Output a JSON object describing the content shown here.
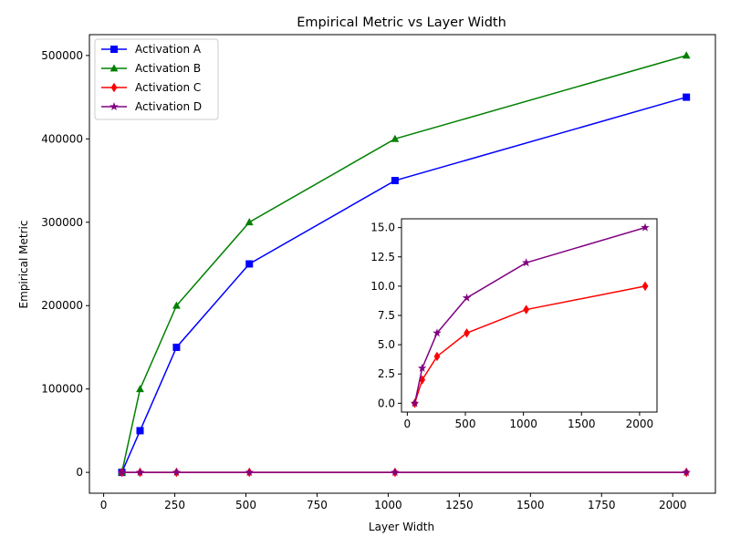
{
  "chart_data": {
    "type": "line",
    "title": "Empirical Metric vs Layer Width",
    "xlabel": "Layer Width",
    "ylabel": "Empirical Metric",
    "x": [
      64,
      128,
      256,
      512,
      1024,
      2048
    ],
    "xlim": [
      -50,
      2150
    ],
    "ylim": [
      -25000,
      525000
    ],
    "xticks": [
      0,
      250,
      500,
      750,
      1000,
      1250,
      1500,
      1750,
      2000
    ],
    "yticks": [
      0,
      100000,
      200000,
      300000,
      400000,
      500000
    ],
    "legend_position": "upper-left",
    "grid": false,
    "series": [
      {
        "name": "Activation A",
        "color": "#0000ff",
        "marker": "square",
        "values": [
          0,
          50000,
          150000,
          250000,
          350000,
          450000
        ]
      },
      {
        "name": "Activation B",
        "color": "#008000",
        "marker": "triangle",
        "values": [
          0,
          100000,
          200000,
          300000,
          400000,
          500000
        ]
      },
      {
        "name": "Activation C",
        "color": "#ff0000",
        "marker": "diamond",
        "values": [
          0,
          2,
          4,
          6,
          8,
          10
        ]
      },
      {
        "name": "Activation D",
        "color": "#800080",
        "marker": "star",
        "values": [
          0,
          3,
          6,
          9,
          12,
          15
        ]
      }
    ],
    "inset": {
      "type": "line",
      "xlim": [
        -50,
        2150
      ],
      "ylim": [
        -0.75,
        15.75
      ],
      "xticks": [
        0,
        500,
        1000,
        1500,
        2000
      ],
      "yticks": [
        0.0,
        2.5,
        5.0,
        7.5,
        10.0,
        12.5,
        15.0
      ],
      "ytick_labels": [
        "0.0",
        "2.5",
        "5.0",
        "7.5",
        "10.0",
        "12.5",
        "15.0"
      ],
      "series_included": [
        "Activation C",
        "Activation D"
      ]
    }
  }
}
